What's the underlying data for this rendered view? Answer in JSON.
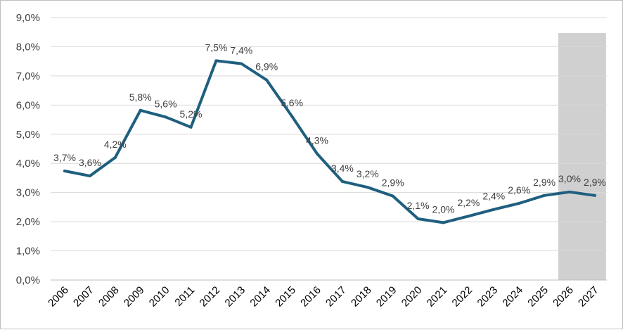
{
  "chart_data": {
    "type": "line",
    "title": "",
    "xlabel": "",
    "ylabel": "",
    "ylim": [
      0,
      9
    ],
    "yticks": [
      "0,0%",
      "1,0%",
      "2,0%",
      "3,0%",
      "4,0%",
      "5,0%",
      "6,0%",
      "7,0%",
      "8,0%",
      "9,0%"
    ],
    "grid": "horizontal",
    "legend": "none",
    "x": [
      "2006",
      "2007",
      "2008",
      "2009",
      "2010",
      "2011",
      "2012",
      "2013",
      "2014",
      "2015",
      "2016",
      "2017",
      "2018",
      "2019",
      "2020",
      "2021",
      "2022",
      "2023",
      "2024",
      "2025",
      "2026",
      "2027"
    ],
    "series": [
      {
        "values": [
          3.74,
          3.57,
          4.2,
          5.82,
          5.59,
          5.24,
          7.52,
          7.42,
          6.86,
          5.62,
          4.33,
          3.38,
          3.18,
          2.88,
          2.1,
          1.97,
          2.19,
          2.42,
          2.63,
          2.9,
          3.02,
          2.9
        ],
        "labels": [
          "3,7%",
          "3,6%",
          "4,2%",
          "5,8%",
          "5,6%",
          "5,2%",
          "7,5%",
          "7,4%",
          "6,9%",
          "5,6%",
          "4,3%",
          "3,4%",
          "3,2%",
          "2,9%",
          "2,1%",
          "2,0%",
          "2,2%",
          "2,4%",
          "2,6%",
          "2,9%",
          "3,0%",
          "2,9%"
        ],
        "color": "#1f5f7f"
      }
    ],
    "shaded_region": {
      "from": "2026",
      "to": "2027",
      "color": "#d0d0d0"
    },
    "colors": {
      "gridline": "#d9d9d9",
      "axis": "#bfbfbf"
    }
  }
}
